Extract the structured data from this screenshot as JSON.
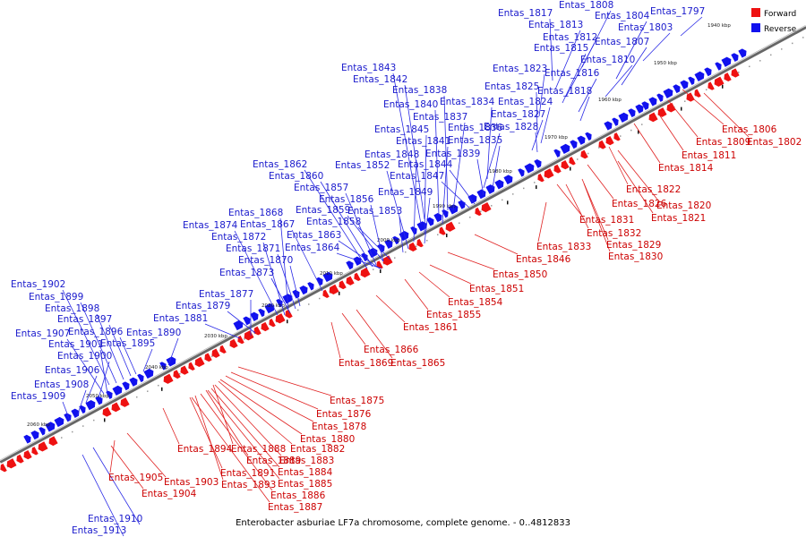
{
  "legend": {
    "forward_label": "Forward",
    "reverse_label": "Reverse",
    "forward_color": "#ee1111",
    "reverse_color": "#1111ee"
  },
  "caption": "Enterobacter asburiae LF7a chromosome, complete genome. - 0..4812833",
  "ticks": [
    "1940 kbp",
    "1950 kbp",
    "1960 kbp",
    "1970 kbp",
    "1980 kbp",
    "1990 kbp",
    "2000 kbp",
    "2010 kbp",
    "2020 kbp",
    "2030 kbp",
    "2040 kbp",
    "2050 kbp",
    "2060 kbp"
  ],
  "reverse_labels": [
    "Entas_1808",
    "Entas_1817",
    "Entas_1804",
    "Entas_1797",
    "Entas_1813",
    "Entas_1803",
    "Entas_1812",
    "Entas_1807",
    "Entas_1815",
    "Entas_1810",
    "Entas_1823",
    "Entas_1816",
    "Entas_1843",
    "Entas_1842",
    "Entas_1825",
    "Entas_1818",
    "Entas_1838",
    "Entas_1834",
    "Entas_1824",
    "Entas_1840",
    "Entas_1837",
    "Entas_1827",
    "Entas_1845",
    "Entas_1836",
    "Entas_1828",
    "Entas_1841",
    "Entas_1835",
    "Entas_1848",
    "Entas_1839",
    "Entas_1862",
    "Entas_1852",
    "Entas_1844",
    "Entas_1860",
    "Entas_1847",
    "Entas_1857",
    "Entas_1849",
    "Entas_1856",
    "Entas_1868",
    "Entas_1859",
    "Entas_1853",
    "Entas_1874",
    "Entas_1867",
    "Entas_1858",
    "Entas_1872",
    "Entas_1863",
    "Entas_1871",
    "Entas_1864",
    "Entas_1870",
    "Entas_1873",
    "Entas_1902",
    "Entas_1877",
    "Entas_1899",
    "Entas_1879",
    "Entas_1898",
    "Entas_1881",
    "Entas_1897",
    "Entas_1896",
    "Entas_1890",
    "Entas_1907",
    "Entas_1895",
    "Entas_1901",
    "Entas_1900",
    "Entas_1906",
    "Entas_1908",
    "Entas_1909",
    "Entas_1910",
    "Entas_1913"
  ],
  "forward_labels": [
    "Entas_1806",
    "Entas_1809",
    "Entas_1802",
    "Entas_1811",
    "Entas_1814",
    "Entas_1822",
    "Entas_1826",
    "Entas_1820",
    "Entas_1821",
    "Entas_1831",
    "Entas_1832",
    "Entas_1829",
    "Entas_1833",
    "Entas_1830",
    "Entas_1846",
    "Entas_1850",
    "Entas_1851",
    "Entas_1854",
    "Entas_1855",
    "Entas_1861",
    "Entas_1866",
    "Entas_1869",
    "Entas_1865",
    "Entas_1875",
    "Entas_1876",
    "Entas_1878",
    "Entas_1880",
    "Entas_1894",
    "Entas_1888",
    "Entas_1882",
    "Entas_1889",
    "Entas_1883",
    "Entas_1891",
    "Entas_1884",
    "Entas_1893",
    "Entas_1885",
    "Entas_1886",
    "Entas_1887",
    "Entas_1905",
    "Entas_1903",
    "Entas_1904"
  ]
}
